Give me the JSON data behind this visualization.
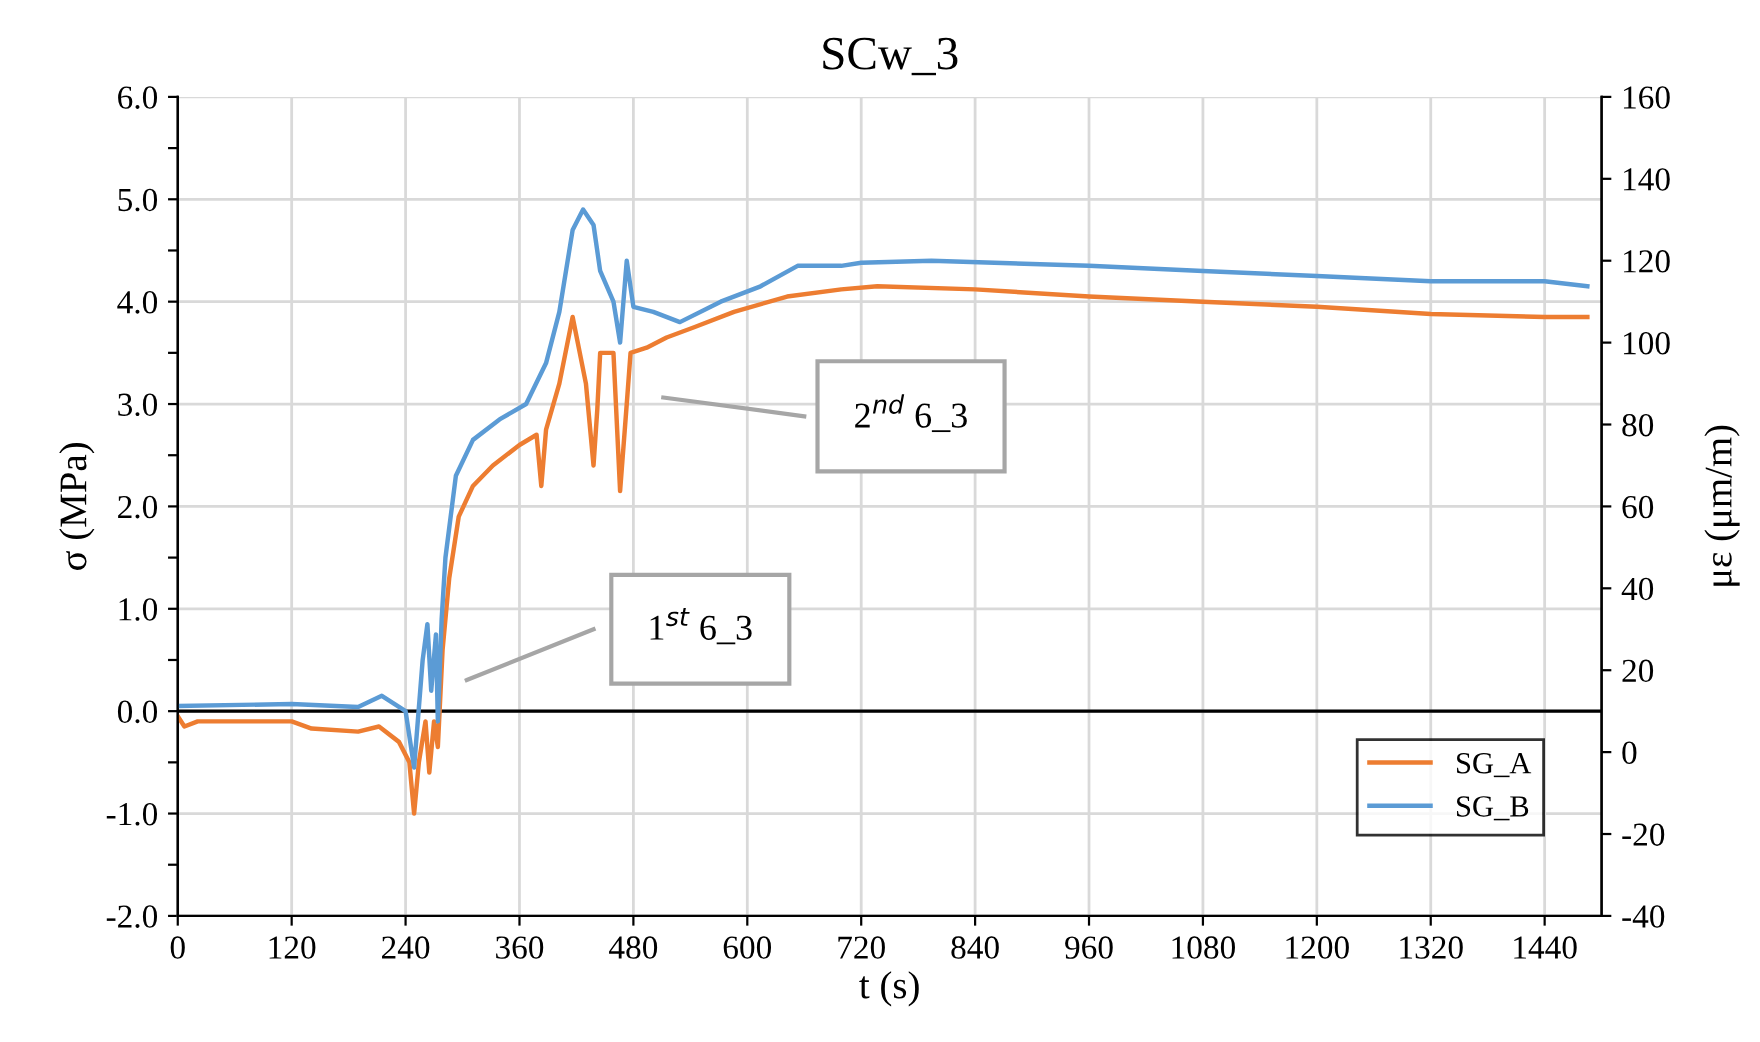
{
  "chart_data": {
    "type": "line",
    "title": "SCw_3",
    "xlabel": "t (s)",
    "ylabel": "σ (MPa)",
    "y2label": "με (μm/m)",
    "series": [
      {
        "name": "SG_A",
        "color": "#ed7d31",
        "x": [
          0,
          7,
          21,
          120,
          141,
          190,
          212,
          233,
          244,
          249,
          254,
          261,
          265,
          270,
          274,
          279,
          286,
          296,
          311,
          332,
          360,
          378,
          383,
          388,
          402,
          416,
          430,
          438,
          442,
          445,
          452,
          459,
          466,
          473,
          477,
          494,
          515,
          544,
          586,
          642,
          699,
          737,
          840,
          960,
          1080,
          1200,
          1320,
          1440,
          1485
        ],
        "values": [
          -0.05,
          -0.15,
          -0.1,
          -0.1,
          -0.17,
          -0.2,
          -0.15,
          -0.3,
          -0.5,
          -1.0,
          -0.5,
          -0.1,
          -0.6,
          -0.1,
          -0.35,
          0.6,
          1.3,
          1.9,
          2.2,
          2.4,
          2.6,
          2.7,
          2.2,
          2.75,
          3.2,
          3.85,
          3.2,
          2.4,
          2.95,
          3.5,
          3.5,
          3.5,
          2.15,
          3.0,
          3.5,
          3.55,
          3.65,
          3.75,
          3.9,
          4.05,
          4.12,
          4.15,
          4.12,
          4.05,
          4.0,
          3.95,
          3.88,
          3.85,
          3.85
        ]
      },
      {
        "name": "SG_B",
        "color": "#5b9bd5",
        "x": [
          0,
          120,
          190,
          215,
          240,
          249,
          258,
          263,
          267,
          272,
          274,
          278,
          282,
          293,
          311,
          339,
          367,
          388,
          402,
          416,
          427,
          438,
          445,
          459,
          466,
          473,
          480,
          501,
          529,
          572,
          614,
          653,
          699,
          720,
          794,
          960,
          1080,
          1200,
          1320,
          1440,
          1485
        ],
        "values": [
          0.05,
          0.07,
          0.04,
          0.15,
          0.0,
          -0.55,
          0.5,
          0.85,
          0.2,
          0.75,
          -0.1,
          0.9,
          1.5,
          2.3,
          2.65,
          2.85,
          3.0,
          3.4,
          3.9,
          4.7,
          4.9,
          4.75,
          4.3,
          4.0,
          3.6,
          4.4,
          3.95,
          3.9,
          3.8,
          4.0,
          4.15,
          4.35,
          4.35,
          4.38,
          4.4,
          4.35,
          4.3,
          4.25,
          4.2,
          4.2,
          4.15
        ]
      }
    ],
    "xlim": [
      0,
      1500
    ],
    "xticks": [
      0,
      120,
      240,
      360,
      480,
      600,
      720,
      840,
      960,
      1080,
      1200,
      1320,
      1440
    ],
    "ylim": [
      -2.0,
      6.0
    ],
    "yticks": [
      {
        "value": -2.0,
        "label": "-2.0"
      },
      {
        "value": -1.5,
        "label": null
      },
      {
        "value": -1.0,
        "label": "-1.0"
      },
      {
        "value": -0.5,
        "label": null
      },
      {
        "value": 0.0,
        "label": "0.0"
      },
      {
        "value": 0.5,
        "label": null
      },
      {
        "value": 1.0,
        "label": "1.0"
      },
      {
        "value": 1.5,
        "label": null
      },
      {
        "value": 2.0,
        "label": "2.0"
      },
      {
        "value": 2.5,
        "label": null
      },
      {
        "value": 3.0,
        "label": "3.0"
      },
      {
        "value": 3.5,
        "label": null
      },
      {
        "value": 4.0,
        "label": "4.0"
      },
      {
        "value": 4.5,
        "label": null
      },
      {
        "value": 5.0,
        "label": "5.0"
      },
      {
        "value": 5.5,
        "label": null
      },
      {
        "value": 6.0,
        "label": "6.0"
      }
    ],
    "y2lim": [
      -40,
      160
    ],
    "y2ticks": [
      -40,
      -20,
      0,
      20,
      40,
      60,
      80,
      100,
      120,
      140,
      160
    ],
    "ref_lines": [
      {
        "axis": "y",
        "value": 0,
        "color": "#000000"
      }
    ],
    "annotations": [
      "1$^{st}$ 6_3",
      "2$^{nd}$ 6_3"
    ],
    "grid": true,
    "legend": "bottom right",
    "line_style": "solid"
  }
}
